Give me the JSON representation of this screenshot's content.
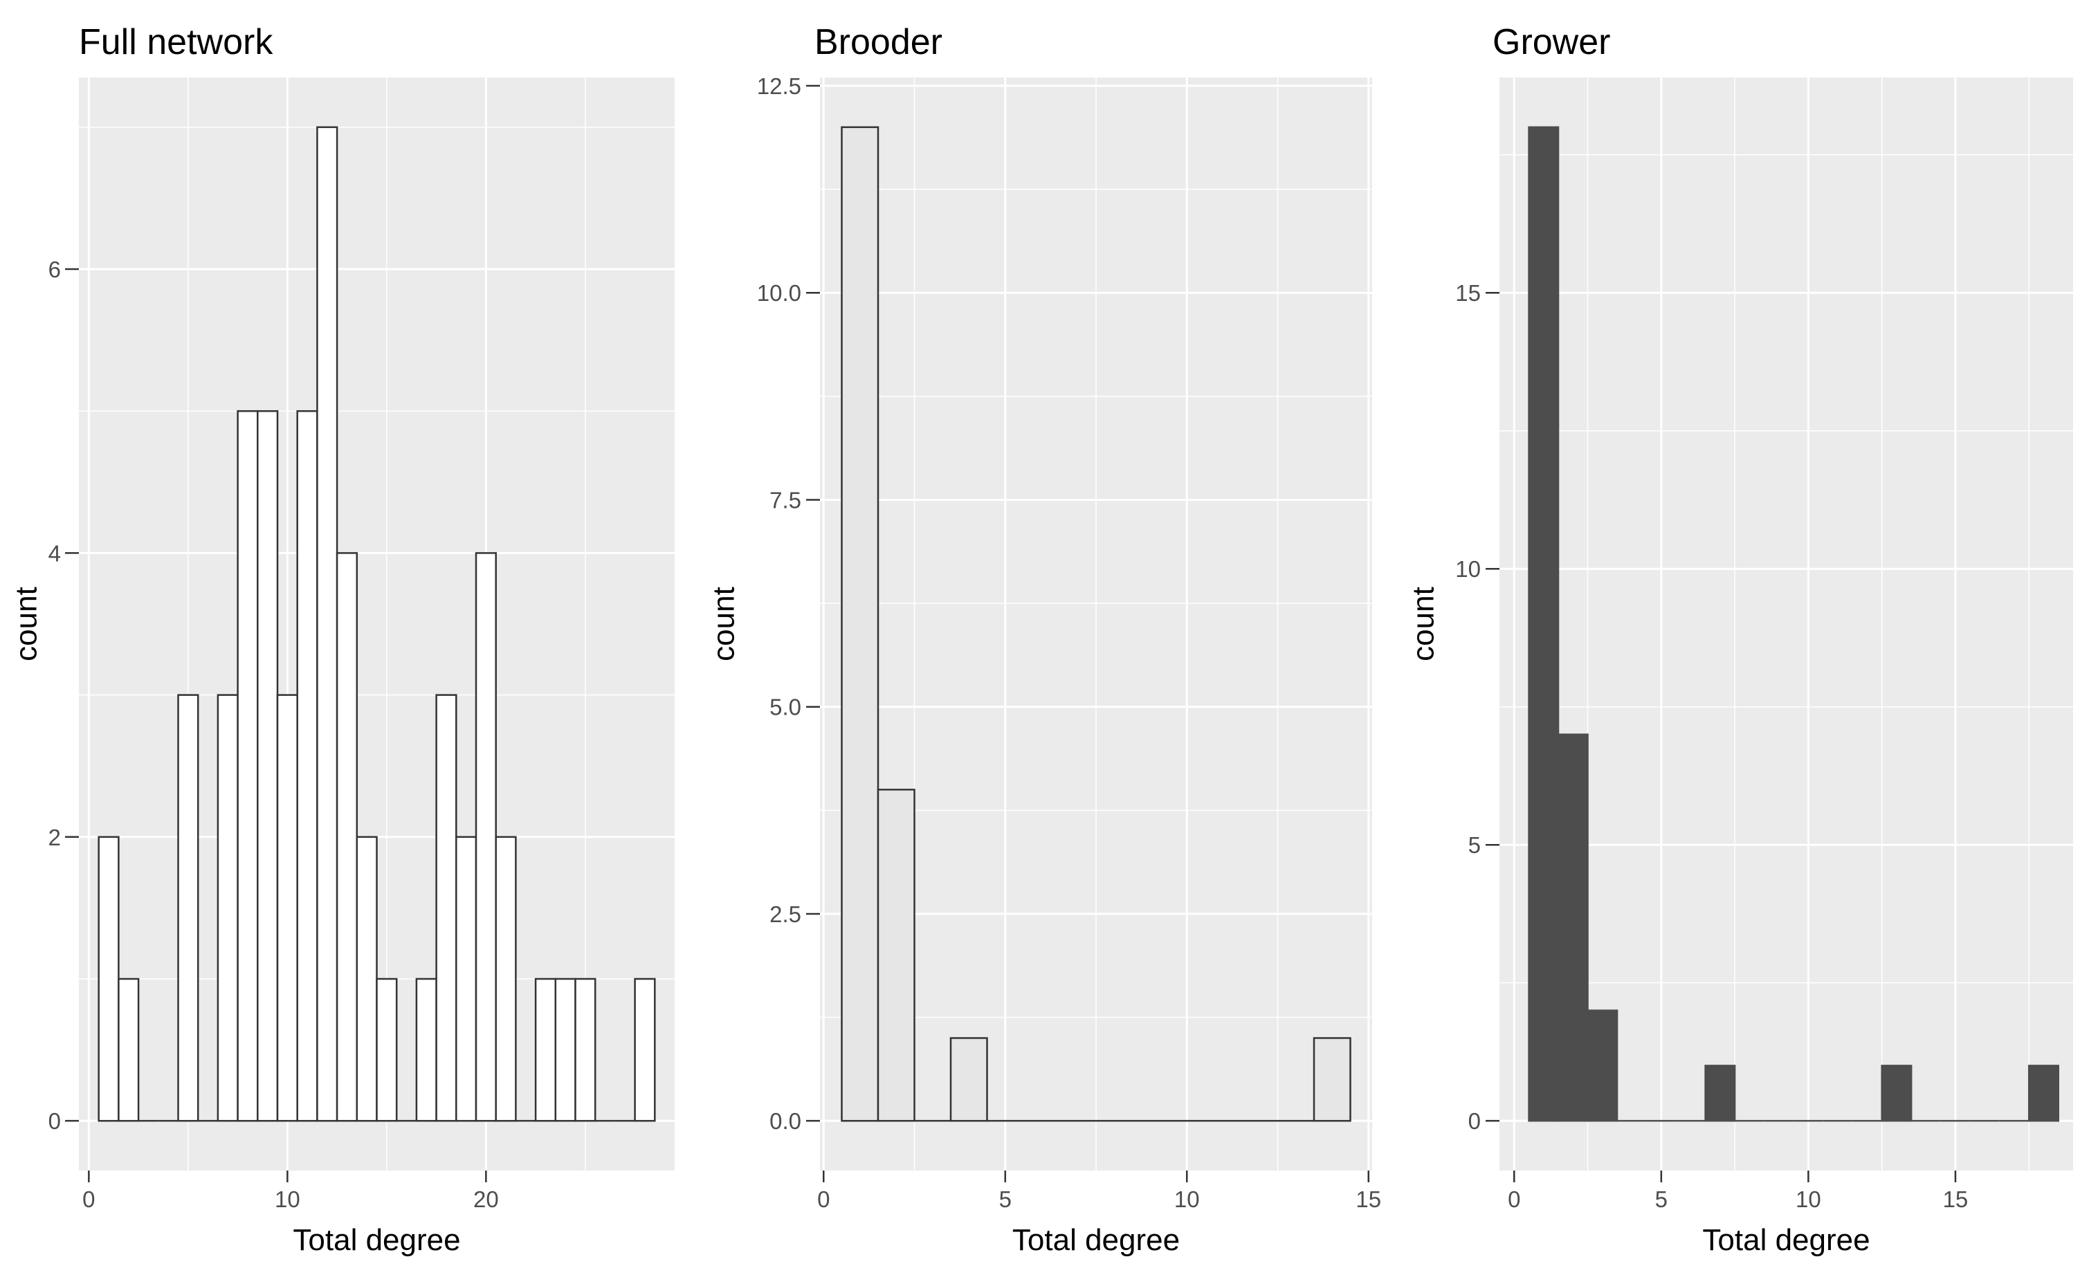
{
  "chart_data": [
    {
      "type": "bar",
      "subtype": "histogram",
      "title": "Full network",
      "xlabel": "Total degree",
      "ylabel": "count",
      "fill": "#ffffff",
      "outline": "#333333",
      "xlim": [
        -0.5,
        29.5
      ],
      "ylim": [
        -0.35,
        7.35
      ],
      "xticks": [
        0,
        10,
        20
      ],
      "yticks": [
        0,
        2,
        4,
        6
      ],
      "ytick_labels": [
        "0",
        "2",
        "4",
        "6"
      ],
      "binwidth": 1,
      "bins": [
        {
          "x": 1,
          "count": 2
        },
        {
          "x": 2,
          "count": 1
        },
        {
          "x": 3,
          "count": 0
        },
        {
          "x": 4,
          "count": 0
        },
        {
          "x": 5,
          "count": 3
        },
        {
          "x": 6,
          "count": 0
        },
        {
          "x": 7,
          "count": 3
        },
        {
          "x": 8,
          "count": 5
        },
        {
          "x": 9,
          "count": 5
        },
        {
          "x": 10,
          "count": 3
        },
        {
          "x": 11,
          "count": 5
        },
        {
          "x": 12,
          "count": 7
        },
        {
          "x": 13,
          "count": 4
        },
        {
          "x": 14,
          "count": 2
        },
        {
          "x": 15,
          "count": 1
        },
        {
          "x": 16,
          "count": 0
        },
        {
          "x": 17,
          "count": 1
        },
        {
          "x": 18,
          "count": 3
        },
        {
          "x": 19,
          "count": 2
        },
        {
          "x": 20,
          "count": 4
        },
        {
          "x": 21,
          "count": 2
        },
        {
          "x": 22,
          "count": 0
        },
        {
          "x": 23,
          "count": 1
        },
        {
          "x": 24,
          "count": 1
        },
        {
          "x": 25,
          "count": 1
        },
        {
          "x": 26,
          "count": 0
        },
        {
          "x": 27,
          "count": 0
        },
        {
          "x": 28,
          "count": 1
        }
      ]
    },
    {
      "type": "bar",
      "subtype": "histogram",
      "title": "Brooder",
      "xlabel": "Total degree",
      "ylabel": "count",
      "fill": "#e6e6e6",
      "outline": "#333333",
      "xlim": [
        -0.1,
        15.1
      ],
      "ylim": [
        -0.6,
        12.6
      ],
      "xticks": [
        0,
        5,
        10,
        15
      ],
      "yticks": [
        0,
        2.5,
        5,
        7.5,
        10,
        12.5
      ],
      "ytick_labels": [
        "0.0",
        "2.5",
        "5.0",
        "7.5",
        "10.0",
        "12.5"
      ],
      "binwidth": 1,
      "bins": [
        {
          "x": 1,
          "count": 12
        },
        {
          "x": 2,
          "count": 4
        },
        {
          "x": 3,
          "count": 0
        },
        {
          "x": 4,
          "count": 1
        },
        {
          "x": 5,
          "count": 0
        },
        {
          "x": 6,
          "count": 0
        },
        {
          "x": 7,
          "count": 0
        },
        {
          "x": 8,
          "count": 0
        },
        {
          "x": 9,
          "count": 0
        },
        {
          "x": 10,
          "count": 0
        },
        {
          "x": 11,
          "count": 0
        },
        {
          "x": 12,
          "count": 0
        },
        {
          "x": 13,
          "count": 0
        },
        {
          "x": 14,
          "count": 1
        }
      ]
    },
    {
      "type": "bar",
      "subtype": "histogram",
      "title": "Grower",
      "xlabel": "Total degree",
      "ylabel": "count",
      "fill": "#4d4d4d",
      "outline": "#4d4d4d",
      "xlim": [
        -0.5,
        19.0
      ],
      "ylim": [
        -0.9,
        18.9
      ],
      "xticks": [
        0,
        5,
        10,
        15
      ],
      "yticks": [
        0,
        5,
        10,
        15
      ],
      "ytick_labels": [
        "0",
        "5",
        "10",
        "15"
      ],
      "binwidth": 1,
      "bins": [
        {
          "x": 1,
          "count": 18
        },
        {
          "x": 2,
          "count": 7
        },
        {
          "x": 3,
          "count": 2
        },
        {
          "x": 4,
          "count": 0
        },
        {
          "x": 5,
          "count": 0
        },
        {
          "x": 6,
          "count": 0
        },
        {
          "x": 7,
          "count": 1
        },
        {
          "x": 8,
          "count": 0
        },
        {
          "x": 9,
          "count": 0
        },
        {
          "x": 10,
          "count": 0
        },
        {
          "x": 11,
          "count": 0
        },
        {
          "x": 12,
          "count": 0
        },
        {
          "x": 13,
          "count": 1
        },
        {
          "x": 14,
          "count": 0
        },
        {
          "x": 15,
          "count": 0
        },
        {
          "x": 16,
          "count": 0
        },
        {
          "x": 17,
          "count": 0
        },
        {
          "x": 18,
          "count": 1
        }
      ]
    }
  ]
}
